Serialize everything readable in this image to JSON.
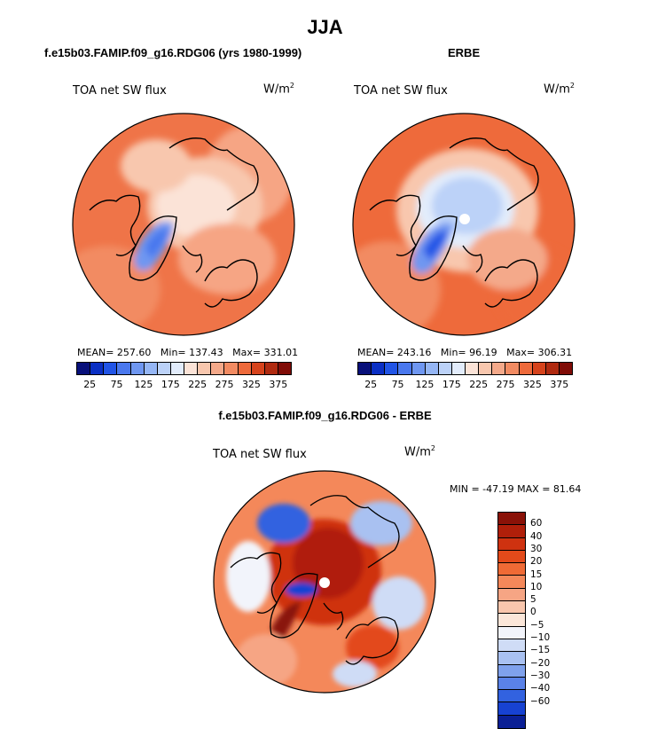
{
  "page": {
    "title": "JJA",
    "units_text": "W/m",
    "units_power": "2"
  },
  "chart_data": [
    {
      "type": "heatmap",
      "projection": "north-polar-stereographic",
      "title": "f.e15b03.FAMIP.f09_g16.RDG06 (yrs 1980-1999)",
      "subtitle": "TOA net SW flux",
      "units": "W/m2",
      "stats": {
        "mean": "257.60",
        "min": "137.43",
        "max": "331.01"
      },
      "colorbar": {
        "levels": [
          25,
          50,
          75,
          100,
          125,
          150,
          175,
          200,
          225,
          250,
          275,
          300,
          325,
          350,
          375
        ],
        "labels": [
          "25",
          "75",
          "125",
          "175",
          "225",
          "275",
          "325",
          "375"
        ],
        "colors": [
          "#08107a",
          "#0a2fc4",
          "#2154e6",
          "#4a78ee",
          "#6f97f1",
          "#95b6f5",
          "#bcd2f8",
          "#e2ecfb",
          "#fbe3d7",
          "#f8c7ae",
          "#f4a98a",
          "#f28b62",
          "#ee6a3b",
          "#d6431c",
          "#b02a10",
          "#800c07"
        ]
      }
    },
    {
      "type": "heatmap",
      "projection": "north-polar-stereographic",
      "title": "ERBE",
      "subtitle": "TOA net SW flux",
      "units": "W/m2",
      "stats": {
        "mean": "243.16",
        "min": "96.19",
        "max": "306.31"
      },
      "colorbar": {
        "levels": [
          25,
          50,
          75,
          100,
          125,
          150,
          175,
          200,
          225,
          250,
          275,
          300,
          325,
          350,
          375
        ],
        "labels": [
          "25",
          "75",
          "125",
          "175",
          "225",
          "275",
          "325",
          "375"
        ],
        "colors": [
          "#08107a",
          "#0a2fc4",
          "#2154e6",
          "#4a78ee",
          "#6f97f1",
          "#95b6f5",
          "#bcd2f8",
          "#e2ecfb",
          "#fbe3d7",
          "#f8c7ae",
          "#f4a98a",
          "#f28b62",
          "#ee6a3b",
          "#d6431c",
          "#b02a10",
          "#800c07"
        ]
      }
    },
    {
      "type": "heatmap",
      "projection": "north-polar-stereographic",
      "title": "f.e15b03.FAMIP.f09_g16.RDG06 - ERBE",
      "subtitle": "TOA net SW flux",
      "units": "W/m2",
      "stats": {
        "min_text": "MIN = -47.19",
        "max_text": "MAX =  81.64"
      },
      "colorbar": {
        "labels": [
          "60",
          "40",
          "30",
          "20",
          "15",
          "10",
          "5",
          "0",
          "−5",
          "−10",
          "−15",
          "−20",
          "−30",
          "−40",
          "−60"
        ],
        "colors": [
          "#8a1208",
          "#b01f0a",
          "#cf3210",
          "#e34a1a",
          "#ef6a35",
          "#f4885a",
          "#f6a584",
          "#f9c6ad",
          "#fbe6d9",
          "#f2f4fb",
          "#cfdcf6",
          "#a9c1f1",
          "#7fa1ec",
          "#5a82e8",
          "#3262e0",
          "#1742d2",
          "#0a1f95"
        ]
      }
    }
  ]
}
